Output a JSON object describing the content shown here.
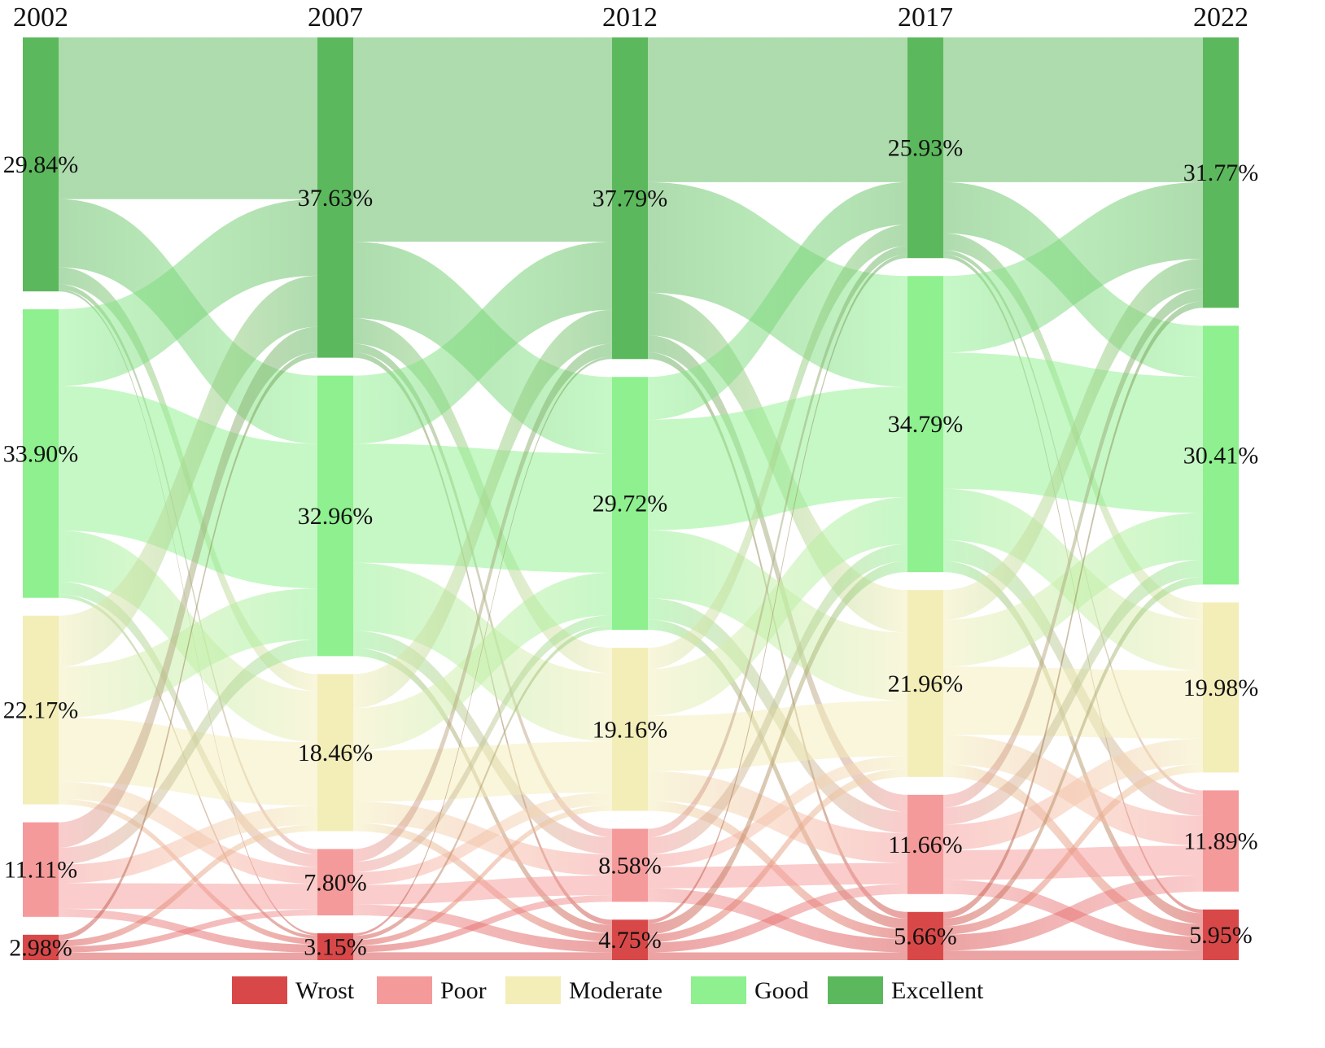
{
  "chart_data": {
    "type": "sankey",
    "title": "",
    "years": [
      "2002",
      "2007",
      "2012",
      "2017",
      "2022"
    ],
    "categories_top_to_bottom": [
      "Excellent",
      "Good",
      "Moderate",
      "Poor",
      "Wrost"
    ],
    "colors": {
      "Excellent": "#5cb85c",
      "Good": "#8ef08e",
      "Moderate": "#f3edb8",
      "Poor": "#f59a9a",
      "Wrost": "#d94848"
    },
    "values": {
      "2002": {
        "Excellent": 29.84,
        "Good": 33.9,
        "Moderate": 22.17,
        "Poor": 11.11,
        "Wrost": 2.98
      },
      "2007": {
        "Excellent": 37.63,
        "Good": 32.96,
        "Moderate": 18.46,
        "Poor": 7.8,
        "Wrost": 3.15
      },
      "2012": {
        "Excellent": 37.79,
        "Good": 29.72,
        "Moderate": 19.16,
        "Poor": 8.58,
        "Wrost": 4.75
      },
      "2017": {
        "Excellent": 25.93,
        "Good": 34.79,
        "Moderate": 21.96,
        "Poor": 11.66,
        "Wrost": 5.66
      },
      "2022": {
        "Excellent": 31.77,
        "Good": 30.41,
        "Moderate": 19.98,
        "Poor": 11.89,
        "Wrost": 5.95
      }
    },
    "labels": {
      "2002": {
        "Excellent": "29.84%",
        "Good": "33.90%",
        "Moderate": "22.17%",
        "Poor": "11.11%",
        "Wrost": "2.98%"
      },
      "2007": {
        "Excellent": "37.63%",
        "Good": "32.96%",
        "Moderate": "18.46%",
        "Poor": "7.80%",
        "Wrost": "3.15%"
      },
      "2012": {
        "Excellent": "37.79%",
        "Good": "29.72%",
        "Moderate": "19.16%",
        "Poor": "8.58%",
        "Wrost": "4.75%"
      },
      "2017": {
        "Excellent": "25.93%",
        "Good": "34.79%",
        "Moderate": "21.96%",
        "Poor": "11.66%",
        "Wrost": "5.66%"
      },
      "2022": {
        "Excellent": "31.77%",
        "Good": "30.41%",
        "Moderate": "19.98%",
        "Poor": "11.89%",
        "Wrost": "5.95%"
      }
    },
    "transitions": [
      {
        "Excellent": {
          "Excellent": 19.0,
          "Good": 8.0,
          "Moderate": 2.0,
          "Poor": 0.6,
          "Wrost": 0.24
        },
        "Good": {
          "Excellent": 9.0,
          "Good": 17.0,
          "Moderate": 6.0,
          "Poor": 1.5,
          "Wrost": 0.4
        },
        "Moderate": {
          "Excellent": 6.0,
          "Good": 6.0,
          "Moderate": 7.5,
          "Poor": 2.0,
          "Wrost": 0.67
        },
        "Poor": {
          "Excellent": 3.0,
          "Good": 1.96,
          "Moderate": 2.2,
          "Poor": 3.0,
          "Wrost": 0.95
        },
        "Wrost": {
          "Excellent": 0.63,
          "Good": 0.0,
          "Moderate": 0.76,
          "Poor": 0.7,
          "Wrost": 0.89
        }
      },
      {
        "Excellent": {
          "Excellent": 24.0,
          "Good": 9.0,
          "Moderate": 3.0,
          "Poor": 1.0,
          "Wrost": 0.63
        },
        "Good": {
          "Excellent": 8.0,
          "Good": 14.0,
          "Moderate": 8.0,
          "Poor": 2.0,
          "Wrost": 0.96
        },
        "Moderate": {
          "Excellent": 4.0,
          "Good": 5.0,
          "Moderate": 6.0,
          "Poor": 2.5,
          "Wrost": 0.96
        },
        "Poor": {
          "Excellent": 1.5,
          "Good": 1.22,
          "Moderate": 1.5,
          "Poor": 2.3,
          "Wrost": 1.28
        },
        "Wrost": {
          "Excellent": 0.29,
          "Good": 0.5,
          "Moderate": 0.66,
          "Poor": 0.78,
          "Wrost": 0.92
        }
      },
      {
        "Excellent": {
          "Excellent": 17.0,
          "Good": 13.0,
          "Moderate": 5.0,
          "Poor": 2.0,
          "Wrost": 0.79
        },
        "Good": {
          "Excellent": 5.0,
          "Good": 13.0,
          "Moderate": 8.0,
          "Poor": 2.5,
          "Wrost": 1.22
        },
        "Moderate": {
          "Excellent": 2.5,
          "Good": 5.5,
          "Moderate": 6.5,
          "Poor": 3.5,
          "Wrost": 1.16
        },
        "Poor": {
          "Excellent": 1.0,
          "Good": 2.0,
          "Moderate": 1.5,
          "Poor": 2.5,
          "Wrost": 1.58
        },
        "Wrost": {
          "Excellent": 0.43,
          "Good": 1.29,
          "Moderate": 0.96,
          "Poor": 1.16,
          "Wrost": 0.91
        }
      },
      {
        "Excellent": {
          "Excellent": 17.0,
          "Good": 6.0,
          "Moderate": 2.0,
          "Poor": 0.5,
          "Wrost": 0.43
        },
        "Good": {
          "Excellent": 9.0,
          "Good": 16.0,
          "Moderate": 6.0,
          "Poor": 2.5,
          "Wrost": 1.29
        },
        "Moderate": {
          "Excellent": 3.5,
          "Good": 5.5,
          "Moderate": 8.0,
          "Poor": 3.5,
          "Wrost": 1.46
        },
        "Poor": {
          "Excellent": 1.5,
          "Good": 2.0,
          "Moderate": 3.0,
          "Poor": 3.5,
          "Wrost": 1.66
        },
        "Wrost": {
          "Excellent": 0.77,
          "Good": 0.91,
          "Moderate": 0.98,
          "Poor": 1.89,
          "Wrost": 1.11
        }
      }
    ],
    "legend": {
      "position": "bottom",
      "items": [
        {
          "key": "Wrost",
          "label": "Wrost"
        },
        {
          "key": "Poor",
          "label": "Poor"
        },
        {
          "key": "Moderate",
          "label": "Moderate"
        },
        {
          "key": "Good",
          "label": "Good"
        },
        {
          "key": "Excellent",
          "label": "Excellent"
        }
      ]
    }
  }
}
